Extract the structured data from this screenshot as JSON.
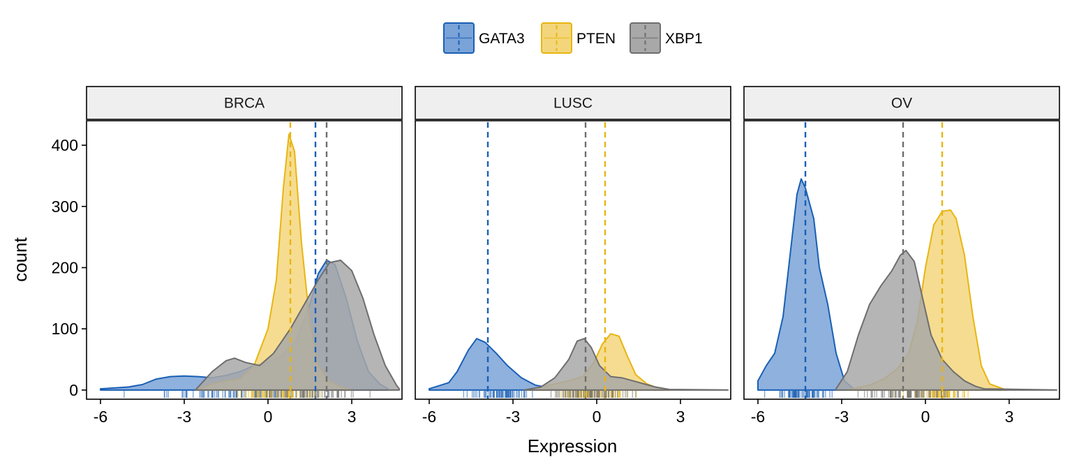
{
  "chart_data": {
    "type": "area",
    "subtype": "density-histogram with rug and mean lines",
    "xlabel": "Expression",
    "ylabel": "count",
    "xlim": [
      -6.5,
      4.8
    ],
    "ylim": [
      -15,
      440
    ],
    "x_ticks": [
      -6,
      -3,
      0,
      3
    ],
    "y_ticks": [
      0,
      100,
      200,
      300,
      400
    ],
    "legend_position": "top",
    "series_colors": {
      "GATA3": "#1a5fb4",
      "PTEN": "#e8b512",
      "XBP1": "#6e6e6e"
    },
    "series_fill_colors": {
      "GATA3": "#7aa3d8",
      "PTEN": "#f3d67c",
      "XBP1": "#a8a8a8"
    },
    "legend": [
      "GATA3",
      "PTEN",
      "XBP1"
    ],
    "panels": [
      {
        "name": "BRCA",
        "series": [
          {
            "name": "GATA3",
            "mean": 1.7,
            "rug_range": [
              -6.0,
              4.0
            ],
            "points": [
              [
                -6.0,
                2
              ],
              [
                -5.0,
                5
              ],
              [
                -4.5,
                9
              ],
              [
                -4.0,
                18
              ],
              [
                -3.5,
                22
              ],
              [
                -3.0,
                23
              ],
              [
                -2.5,
                22
              ],
              [
                -2.0,
                20
              ],
              [
                -1.5,
                24
              ],
              [
                -1.0,
                30
              ],
              [
                -0.5,
                40
              ],
              [
                0,
                45
              ],
              [
                0.5,
                55
              ],
              [
                1.0,
                80
              ],
              [
                1.5,
                140
              ],
              [
                1.8,
                190
              ],
              [
                2.1,
                212
              ],
              [
                2.4,
                205
              ],
              [
                2.8,
                150
              ],
              [
                3.2,
                80
              ],
              [
                3.6,
                30
              ],
              [
                4.0,
                10
              ],
              [
                4.3,
                2
              ]
            ]
          },
          {
            "name": "PTEN",
            "mean": 0.8,
            "rug_range": [
              -1.8,
              2.8
            ],
            "points": [
              [
                -2.6,
                0
              ],
              [
                -2.0,
                10
              ],
              [
                -1.5,
                15
              ],
              [
                -1.0,
                18
              ],
              [
                -0.5,
                40
              ],
              [
                0,
                100
              ],
              [
                0.3,
                180
              ],
              [
                0.55,
                330
              ],
              [
                0.75,
                418
              ],
              [
                0.95,
                390
              ],
              [
                1.2,
                240
              ],
              [
                1.5,
                110
              ],
              [
                1.8,
                40
              ],
              [
                2.2,
                15
              ],
              [
                2.6,
                5
              ],
              [
                3.0,
                0
              ]
            ]
          },
          {
            "name": "XBP1",
            "mean": 2.1,
            "rug_range": [
              -2.2,
              4.8
            ],
            "points": [
              [
                -2.6,
                0
              ],
              [
                -2.0,
                30
              ],
              [
                -1.5,
                48
              ],
              [
                -1.2,
                52
              ],
              [
                -0.8,
                45
              ],
              [
                -0.3,
                40
              ],
              [
                0.2,
                60
              ],
              [
                0.8,
                100
              ],
              [
                1.3,
                140
              ],
              [
                1.8,
                180
              ],
              [
                2.2,
                208
              ],
              [
                2.6,
                212
              ],
              [
                3.0,
                195
              ],
              [
                3.4,
                150
              ],
              [
                3.8,
                90
              ],
              [
                4.2,
                40
              ],
              [
                4.6,
                8
              ],
              [
                4.7,
                2
              ]
            ]
          }
        ]
      },
      {
        "name": "LUSC",
        "series": [
          {
            "name": "GATA3",
            "mean": -3.9,
            "rug_range": [
              -5.0,
              -1.8
            ],
            "points": [
              [
                -6.0,
                2
              ],
              [
                -5.3,
                12
              ],
              [
                -5.0,
                30
              ],
              [
                -4.6,
                65
              ],
              [
                -4.3,
                84
              ],
              [
                -4.0,
                78
              ],
              [
                -3.6,
                60
              ],
              [
                -3.2,
                40
              ],
              [
                -2.7,
                20
              ],
              [
                -2.2,
                8
              ],
              [
                -1.6,
                3
              ],
              [
                -1.0,
                1
              ],
              [
                0,
                0
              ]
            ]
          },
          {
            "name": "PTEN",
            "mean": 0.3,
            "rug_range": [
              -2.0,
              2.0
            ],
            "points": [
              [
                -2.5,
                0
              ],
              [
                -2.0,
                5
              ],
              [
                -1.5,
                10
              ],
              [
                -1.0,
                15
              ],
              [
                -0.5,
                22
              ],
              [
                -0.1,
                45
              ],
              [
                0.2,
                75
              ],
              [
                0.5,
                92
              ],
              [
                0.8,
                88
              ],
              [
                1.1,
                55
              ],
              [
                1.4,
                25
              ],
              [
                1.8,
                10
              ],
              [
                2.2,
                3
              ],
              [
                2.6,
                0
              ]
            ]
          },
          {
            "name": "XBP1",
            "mean": -0.4,
            "rug_range": [
              -2.6,
              2.2
            ],
            "points": [
              [
                -2.6,
                0
              ],
              [
                -2.0,
                5
              ],
              [
                -1.5,
                20
              ],
              [
                -1.0,
                50
              ],
              [
                -0.7,
                80
              ],
              [
                -0.45,
                84
              ],
              [
                -0.2,
                70
              ],
              [
                0.1,
                40
              ],
              [
                0.5,
                22
              ],
              [
                0.9,
                20
              ],
              [
                1.3,
                15
              ],
              [
                1.7,
                10
              ],
              [
                2.1,
                5
              ],
              [
                2.6,
                1
              ],
              [
                4.7,
                0
              ]
            ]
          }
        ]
      },
      {
        "name": "OV",
        "series": [
          {
            "name": "GATA3",
            "mean": -4.3,
            "rug_range": [
              -6.0,
              -2.8
            ],
            "points": [
              [
                -6.0,
                15
              ],
              [
                -5.7,
                40
              ],
              [
                -5.4,
                60
              ],
              [
                -5.1,
                120
              ],
              [
                -4.8,
                240
              ],
              [
                -4.6,
                320
              ],
              [
                -4.45,
                345
              ],
              [
                -4.3,
                330
              ],
              [
                -4.0,
                280
              ],
              [
                -3.8,
                200
              ],
              [
                -3.5,
                140
              ],
              [
                -3.2,
                60
              ],
              [
                -2.9,
                15
              ],
              [
                -2.6,
                3
              ],
              [
                -2.2,
                0
              ]
            ]
          },
          {
            "name": "PTEN",
            "mean": 0.6,
            "rug_range": [
              -2.0,
              2.7
            ],
            "points": [
              [
                -2.8,
                0
              ],
              [
                -2.4,
                4
              ],
              [
                -2.0,
                8
              ],
              [
                -1.5,
                18
              ],
              [
                -1.0,
                35
              ],
              [
                -0.6,
                60
              ],
              [
                -0.3,
                110
              ],
              [
                0,
                200
              ],
              [
                0.3,
                270
              ],
              [
                0.6,
                292
              ],
              [
                0.9,
                294
              ],
              [
                1.1,
                280
              ],
              [
                1.4,
                220
              ],
              [
                1.7,
                120
              ],
              [
                2.0,
                40
              ],
              [
                2.3,
                10
              ],
              [
                2.6,
                5
              ],
              [
                2.9,
                0
              ]
            ]
          },
          {
            "name": "XBP1",
            "mean": -0.8,
            "rug_range": [
              -3.2,
              2.1
            ],
            "points": [
              [
                -3.2,
                2
              ],
              [
                -2.8,
                30
              ],
              [
                -2.4,
                90
              ],
              [
                -2.0,
                140
              ],
              [
                -1.6,
                170
              ],
              [
                -1.2,
                195
              ],
              [
                -0.9,
                220
              ],
              [
                -0.7,
                228
              ],
              [
                -0.4,
                210
              ],
              [
                -0.1,
                150
              ],
              [
                0.2,
                90
              ],
              [
                0.6,
                50
              ],
              [
                1.0,
                30
              ],
              [
                1.4,
                15
              ],
              [
                1.8,
                6
              ],
              [
                2.1,
                2
              ],
              [
                4.7,
                0
              ]
            ]
          }
        ]
      }
    ]
  }
}
